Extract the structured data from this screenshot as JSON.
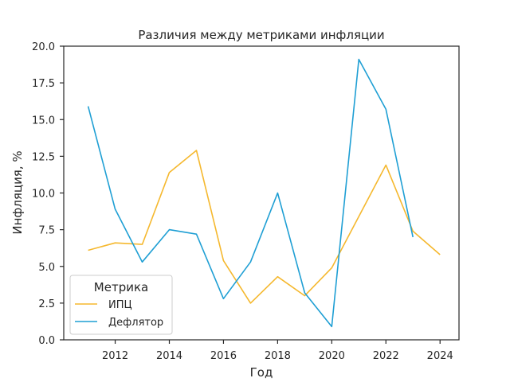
{
  "chart_data": {
    "type": "line",
    "title": "Различия между метриками инфляции",
    "xlabel": "Год",
    "ylabel": "Инфляция, %",
    "xlim": [
      2010.1,
      2024.7
    ],
    "ylim": [
      0,
      20
    ],
    "xticks": [
      2012,
      2014,
      2016,
      2018,
      2020,
      2022,
      2024
    ],
    "yticks": [
      "0.0",
      "2.5",
      "5.0",
      "7.5",
      "10.0",
      "12.5",
      "15.0",
      "17.5",
      "20.0"
    ],
    "grid": false,
    "legend": {
      "title": "Метрика",
      "position": "lower-left"
    },
    "series": [
      {
        "name": "ИПЦ",
        "color": "#f5b82e",
        "points": [
          [
            2011,
            6.1
          ],
          [
            2012,
            6.6
          ],
          [
            2013,
            6.5
          ],
          [
            2014,
            11.4
          ],
          [
            2015,
            12.9
          ],
          [
            2016,
            5.4
          ],
          [
            2017,
            2.5
          ],
          [
            2018,
            4.3
          ],
          [
            2019,
            3.0
          ],
          [
            2020,
            4.9
          ],
          [
            2021,
            8.4
          ],
          [
            2022,
            11.9
          ],
          [
            2023,
            7.4
          ],
          [
            2024,
            5.8
          ]
        ]
      },
      {
        "name": "Дефлятор",
        "color": "#1f9fd4",
        "points": [
          [
            2011,
            15.9
          ],
          [
            2012,
            8.9
          ],
          [
            2013,
            5.3
          ],
          [
            2014,
            7.5
          ],
          [
            2015,
            7.2
          ],
          [
            2016,
            2.8
          ],
          [
            2017,
            5.3
          ],
          [
            2018,
            10.0
          ],
          [
            2019,
            3.2
          ],
          [
            2020,
            0.9
          ],
          [
            2021,
            19.1
          ],
          [
            2022,
            15.7
          ],
          [
            2023,
            7.0
          ]
        ]
      }
    ]
  }
}
